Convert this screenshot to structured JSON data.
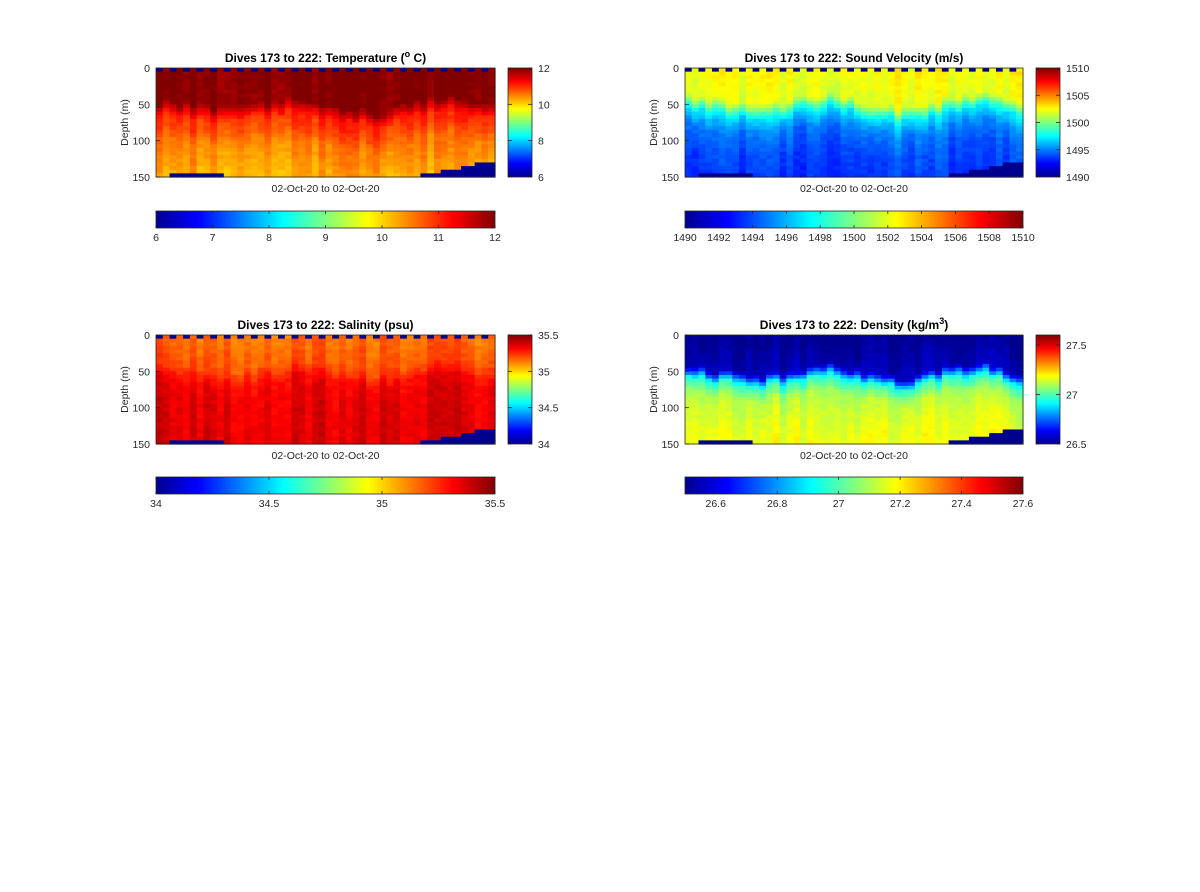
{
  "chart_data": [
    {
      "type": "heatmap",
      "title": "Dives 173 to 222: Temperature (",
      "title_sup": "o",
      "title_end": " C)",
      "xlabel": "02-Oct-20 to 02-Oct-20",
      "ylabel": "Depth (m)",
      "ylim": [
        0,
        150
      ],
      "yticks": [
        "0",
        "50",
        "100",
        "150"
      ],
      "clim": [
        6,
        12
      ],
      "side_ticks": [
        {
          "v": 6,
          "t": "6"
        },
        {
          "v": 8,
          "t": "8"
        },
        {
          "v": 10,
          "t": "10"
        },
        {
          "v": 12,
          "t": "12"
        }
      ],
      "bottom_ticks": [
        {
          "v": 6,
          "t": "6"
        },
        {
          "v": 7,
          "t": "7"
        },
        {
          "v": 8,
          "t": "8"
        },
        {
          "v": 9,
          "t": "9"
        },
        {
          "v": 10,
          "t": "10"
        },
        {
          "v": 11,
          "t": "11"
        },
        {
          "v": 12,
          "t": "12"
        }
      ],
      "profile": [
        [
          0,
          12
        ],
        [
          45,
          12
        ],
        [
          65,
          11
        ],
        [
          85,
          10.8
        ],
        [
          100,
          10.5
        ],
        [
          150,
          10.2
        ]
      ],
      "mixed_layer_depth": [
        48,
        55,
        62,
        52,
        45,
        58,
        66,
        50,
        44,
        56
      ],
      "seafloor_depth": [
        150,
        142,
        150,
        150,
        150,
        150,
        150,
        148,
        140,
        128
      ]
    },
    {
      "type": "heatmap",
      "title": "Dives 173 to 222: Sound Velocity (m/s)",
      "xlabel": "02-Oct-20 to 02-Oct-20",
      "ylabel": "Depth (m)",
      "ylim": [
        0,
        150
      ],
      "yticks": [
        "0",
        "50",
        "100",
        "150"
      ],
      "clim": [
        1490,
        1510
      ],
      "side_ticks": [
        {
          "v": 1490,
          "t": "1490"
        },
        {
          "v": 1495,
          "t": "1495"
        },
        {
          "v": 1500,
          "t": "1500"
        },
        {
          "v": 1505,
          "t": "1505"
        },
        {
          "v": 1510,
          "t": "1510"
        }
      ],
      "bottom_ticks": [
        {
          "v": 1490,
          "t": "1490"
        },
        {
          "v": 1492,
          "t": "1492"
        },
        {
          "v": 1494,
          "t": "1494"
        },
        {
          "v": 1496,
          "t": "1496"
        },
        {
          "v": 1498,
          "t": "1498"
        },
        {
          "v": 1500,
          "t": "1500"
        },
        {
          "v": 1502,
          "t": "1502"
        },
        {
          "v": 1504,
          "t": "1504"
        },
        {
          "v": 1506,
          "t": "1506"
        },
        {
          "v": 1508,
          "t": "1508"
        },
        {
          "v": 1510,
          "t": "1510"
        }
      ],
      "profile": [
        [
          0,
          1502.5
        ],
        [
          40,
          1502
        ],
        [
          60,
          1497
        ],
        [
          80,
          1495
        ],
        [
          110,
          1494
        ],
        [
          150,
          1493.5
        ]
      ],
      "mixed_layer_depth": [
        48,
        55,
        62,
        52,
        45,
        58,
        66,
        50,
        44,
        56
      ],
      "seafloor_depth": [
        150,
        142,
        150,
        150,
        150,
        150,
        150,
        148,
        140,
        128
      ]
    },
    {
      "type": "heatmap",
      "title": "Dives 173 to 222: Salinity (psu)",
      "xlabel": "02-Oct-20 to 02-Oct-20",
      "ylabel": "Depth (m)",
      "ylim": [
        0,
        150
      ],
      "yticks": [
        "0",
        "50",
        "100",
        "150"
      ],
      "clim": [
        34,
        35.5
      ],
      "side_ticks": [
        {
          "v": 34,
          "t": "34"
        },
        {
          "v": 34.5,
          "t": "34.5"
        },
        {
          "v": 35,
          "t": "35"
        },
        {
          "v": 35.5,
          "t": "35.5"
        }
      ],
      "bottom_ticks": [
        {
          "v": 34,
          "t": "34"
        },
        {
          "v": 34.5,
          "t": "34.5"
        },
        {
          "v": 35,
          "t": "35"
        },
        {
          "v": 35.5,
          "t": "35.5"
        }
      ],
      "profile": [
        [
          0,
          35.15
        ],
        [
          40,
          35.2
        ],
        [
          60,
          35.32
        ],
        [
          80,
          35.35
        ],
        [
          150,
          35.36
        ]
      ],
      "mixed_layer_depth": [
        48,
        55,
        62,
        52,
        45,
        58,
        66,
        50,
        44,
        56
      ],
      "seafloor_depth": [
        150,
        142,
        150,
        150,
        150,
        150,
        150,
        148,
        140,
        128
      ]
    },
    {
      "type": "heatmap",
      "title": "Dives 173 to 222: Density (kg/m",
      "title_sup": "3",
      "title_end": ")",
      "xlabel": "02-Oct-20 to 02-Oct-20",
      "ylabel": "Depth (m)",
      "ylim": [
        0,
        150
      ],
      "yticks": [
        "0",
        "50",
        "100",
        "150"
      ],
      "clim": [
        26.5,
        27.6
      ],
      "side_ticks": [
        {
          "v": 26.5,
          "t": "26.5"
        },
        {
          "v": 27,
          "t": "27"
        },
        {
          "v": 27.5,
          "t": "27.5"
        }
      ],
      "bottom_ticks": [
        {
          "v": 26.6,
          "t": "26.6"
        },
        {
          "v": 26.8,
          "t": "26.8"
        },
        {
          "v": 27,
          "t": "27"
        },
        {
          "v": 27.2,
          "t": "27.2"
        },
        {
          "v": 27.4,
          "t": "27.4"
        },
        {
          "v": 27.6,
          "t": "27.6"
        }
      ],
      "bottom_clim": [
        26.5,
        27.6
      ],
      "profile": [
        [
          0,
          26.5
        ],
        [
          45,
          26.55
        ],
        [
          60,
          26.95
        ],
        [
          80,
          27.1
        ],
        [
          110,
          27.15
        ],
        [
          150,
          27.18
        ]
      ],
      "mixed_layer_depth": [
        48,
        55,
        62,
        52,
        45,
        58,
        66,
        50,
        44,
        56
      ],
      "seafloor_depth": [
        150,
        142,
        150,
        150,
        150,
        150,
        150,
        148,
        140,
        128
      ]
    }
  ]
}
